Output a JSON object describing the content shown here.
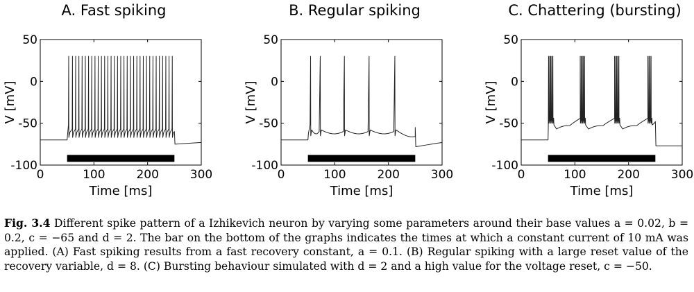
{
  "chart_data": [
    {
      "type": "line",
      "title": "A. Fast spiking",
      "xlabel": "Time [ms]",
      "ylabel": "V [mV]",
      "xlim": [
        0,
        300
      ],
      "ylim": [
        -100,
        50
      ],
      "x_ticks": [
        0,
        100,
        200,
        300
      ],
      "y_ticks": [
        50,
        0,
        -50,
        -100
      ],
      "grid": false,
      "stimulus_bar": {
        "start": 50,
        "end": 250,
        "level": -92
      },
      "series": [
        {
          "rest_level": -70,
          "rest_after": -75,
          "post_min": -61,
          "stim_onset": 50,
          "stim_offset": 250,
          "spike_peak": 30,
          "spike_times": [
            53,
            60,
            66,
            72,
            78,
            84,
            90,
            96,
            102,
            108,
            114,
            120,
            126,
            132,
            138,
            144,
            150,
            156,
            162,
            168,
            174,
            180,
            186,
            192,
            198,
            204,
            210,
            216,
            222,
            228,
            234,
            240,
            246
          ],
          "reset": -67,
          "end_value": -73
        }
      ]
    },
    {
      "type": "line",
      "title": "B. Regular spiking",
      "xlabel": "Time [ms]",
      "ylabel": "V [mV]",
      "xlim": [
        0,
        300
      ],
      "ylim": [
        -100,
        50
      ],
      "x_ticks": [
        0,
        100,
        200,
        300
      ],
      "y_ticks": [
        50,
        0,
        -50,
        -100
      ],
      "grid": false,
      "stimulus_bar": {
        "start": 50,
        "end": 250,
        "level": -92
      },
      "series": [
        {
          "rest_level": -70,
          "rest_after": -78,
          "stim_onset": 50,
          "stim_offset": 250,
          "spike_peak": 30,
          "spike_times": [
            55,
            73,
            118,
            164,
            212
          ],
          "reset": -65,
          "pre_spike": -52,
          "end_value": -73
        }
      ]
    },
    {
      "type": "line",
      "title": "C. Chattering (bursting)",
      "xlabel": "Time [ms]",
      "ylabel": "V [mV]",
      "xlim": [
        0,
        300
      ],
      "ylim": [
        -100,
        50
      ],
      "x_ticks": [
        0,
        100,
        200,
        300
      ],
      "y_ticks": [
        50,
        0,
        -50,
        -100
      ],
      "grid": false,
      "stimulus_bar": {
        "start": 50,
        "end": 250,
        "level": -92
      },
      "series": [
        {
          "rest_level": -70,
          "rest_after": -77,
          "stim_onset": 50,
          "stim_offset": 250,
          "spike_peak": 30,
          "bursts": [
            [
              51,
              53,
              55,
              57,
              59
            ],
            [
              110,
              112,
              114,
              116,
              118
            ],
            [
              174,
              176,
              178,
              180,
              182
            ],
            [
              236,
              238,
              240,
              242
            ]
          ],
          "reset": -50,
          "trough": -66,
          "end_value": -77
        }
      ]
    }
  ],
  "caption": {
    "lead": "Fig. 3.4",
    "text": " Different spike pattern of a Izhikevich neuron by varying some parameters around their base values a = 0.02, b = 0.2, c = −65 and d = 2. The bar on the bottom of the graphs indicates the times at which a constant current of 10 mA was applied. (A) Fast spiking results from a fast recovery constant, a = 0.1. (B) Regular spiking with a large reset value of the recovery variable, d = 8. (C) Bursting behaviour simulated with d = 2 and a high value for the voltage reset, c = −50."
  }
}
